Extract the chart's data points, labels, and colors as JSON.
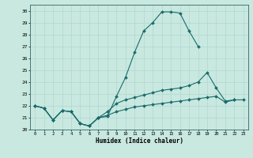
{
  "xlabel": "Humidex (Indice chaleur)",
  "xlim": [
    -0.5,
    23.5
  ],
  "ylim": [
    20,
    30.5
  ],
  "yticks": [
    20,
    21,
    22,
    23,
    24,
    25,
    26,
    27,
    28,
    29,
    30
  ],
  "xticks": [
    0,
    1,
    2,
    3,
    4,
    5,
    6,
    7,
    8,
    9,
    10,
    11,
    12,
    13,
    14,
    15,
    16,
    17,
    18,
    19,
    20,
    21,
    22,
    23
  ],
  "bg_color": "#c8e8e0",
  "line_color": "#1a6b6b",
  "grid_color": "#b0d8d0",
  "s1x": [
    0,
    1,
    2,
    3,
    4,
    5,
    6,
    7,
    8,
    9,
    10,
    11,
    12,
    13,
    14,
    15,
    16,
    17,
    18
  ],
  "s1y": [
    22.0,
    21.8,
    20.8,
    21.6,
    21.5,
    20.5,
    20.3,
    21.0,
    21.1,
    22.8,
    24.4,
    26.5,
    28.3,
    29.0,
    29.9,
    29.9,
    29.8,
    28.3,
    27.0
  ],
  "s2x": [
    0,
    1,
    2,
    3,
    4,
    5,
    6,
    7,
    8,
    9,
    10,
    11,
    12,
    13,
    14,
    15,
    16,
    17,
    18,
    19,
    20,
    21,
    22
  ],
  "s2y": [
    22.0,
    21.8,
    20.8,
    21.6,
    21.5,
    20.5,
    20.3,
    21.0,
    21.5,
    22.2,
    22.5,
    22.7,
    22.9,
    23.1,
    23.3,
    23.4,
    23.5,
    23.7,
    24.0,
    24.8,
    23.5,
    22.4,
    22.5
  ],
  "s3x": [
    0,
    1,
    2,
    3,
    4,
    5,
    6,
    7,
    8,
    9,
    10,
    11,
    12,
    13,
    14,
    15,
    16,
    17,
    18,
    19,
    20,
    21,
    22,
    23
  ],
  "s3y": [
    22.0,
    21.8,
    20.8,
    21.6,
    21.5,
    20.5,
    20.3,
    21.0,
    21.2,
    21.5,
    21.7,
    21.9,
    22.0,
    22.1,
    22.2,
    22.3,
    22.4,
    22.5,
    22.6,
    22.7,
    22.8,
    22.3,
    22.5,
    22.5
  ]
}
